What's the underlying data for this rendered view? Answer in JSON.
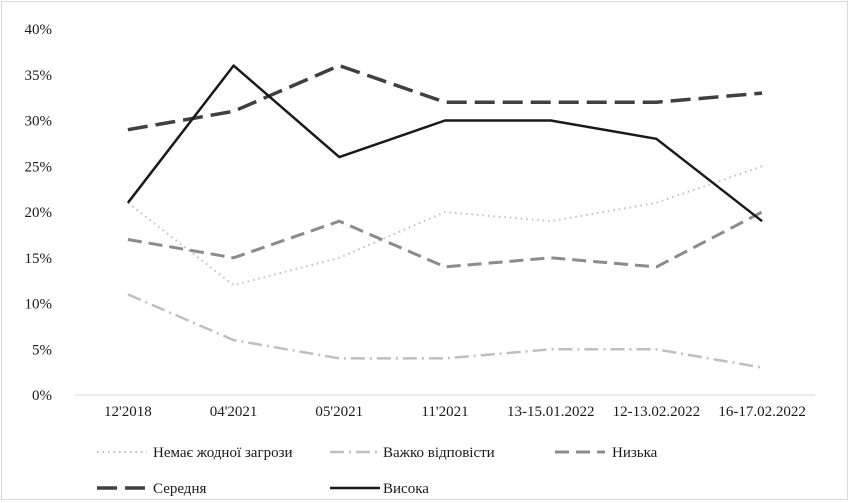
{
  "chart_data": {
    "type": "line",
    "categories": [
      "12'2018",
      "04'2021",
      "05'2021",
      "11'2021",
      "13-15.01.2022",
      "12-13.02.2022",
      "16-17.02.2022"
    ],
    "ylim": [
      0,
      40
    ],
    "yticks": [
      "0%",
      "5%",
      "10%",
      "15%",
      "20%",
      "25%",
      "30%",
      "35%",
      "40%"
    ],
    "grid": false,
    "legend_position": "bottom",
    "series": [
      {
        "name": "Немає жодної загрози",
        "values": [
          21,
          12,
          15,
          20,
          19,
          21,
          25
        ],
        "color": "#bfbfbf",
        "dash": "1.5 4",
        "width": 2
      },
      {
        "name": "Важко відповісти",
        "values": [
          11,
          6,
          4,
          4,
          5,
          5,
          3
        ],
        "color": "#bfbfbf",
        "dash": "14 5 2 5",
        "width": 2.5
      },
      {
        "name": "Низька",
        "values": [
          17,
          15,
          19,
          14,
          15,
          14,
          20
        ],
        "color": "#8c8c8c",
        "dash": "14 7",
        "width": 3
      },
      {
        "name": "Середня",
        "values": [
          29,
          31,
          36,
          32,
          32,
          32,
          33
        ],
        "color": "#404040",
        "dash": "20 8",
        "width": 3.5
      },
      {
        "name": "Висока",
        "values": [
          21,
          36,
          26,
          30,
          30,
          28,
          19
        ],
        "color": "#1a1a1a",
        "dash": "",
        "width": 2.5
      }
    ]
  }
}
